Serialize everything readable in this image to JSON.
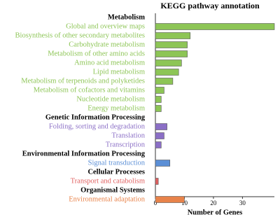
{
  "chart_data": {
    "type": "bar",
    "orientation": "horizontal",
    "title": "KEGG pathway annotation",
    "x_label": "Number of Genes",
    "xlim": [
      0,
      41
    ],
    "xticks": [
      0,
      10,
      20,
      30
    ],
    "groups": [
      {
        "name": "Metabolism",
        "color": "#8dc556",
        "categories": [
          "Global and overview maps",
          "Biosynthesis of other secondary metabolites",
          "Carbohydrate metabolism",
          "Metabolism of other amino acids",
          "Amino acid metabolism",
          "Lipid metabolism",
          "Metabolism of terpenoids and polyketides",
          "Metabolism of cofactors and vitamins",
          "Nucleotide metabolism",
          "Energy metabolism"
        ],
        "values": [
          41,
          12,
          11,
          11,
          9,
          8,
          6,
          3,
          2,
          2
        ]
      },
      {
        "name": "Genetic Information Processing",
        "color": "#8b6fc6",
        "categories": [
          "Folding, sorting and degradation",
          "Translation",
          "Transcription"
        ],
        "values": [
          4,
          3,
          2
        ]
      },
      {
        "name": "Environmental Information Processing",
        "color": "#5b8fd6",
        "categories": [
          "Signal transduction"
        ],
        "values": [
          5
        ]
      },
      {
        "name": "Cellular Processes",
        "color": "#e06060",
        "categories": [
          "Transport and catabolism"
        ],
        "values": [
          1
        ]
      },
      {
        "name": "Organismal Systems",
        "color": "#e8834a",
        "categories": [
          "Environmental adaptation"
        ],
        "values": [
          10
        ]
      }
    ]
  }
}
